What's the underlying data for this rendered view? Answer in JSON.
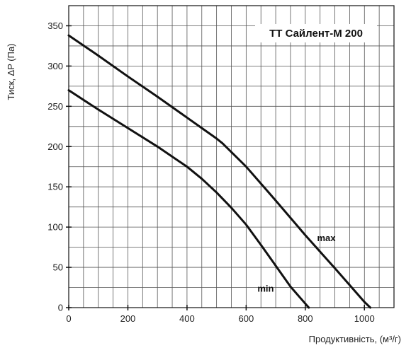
{
  "chart_data": {
    "type": "line",
    "title": "TT Сайлент-М 200",
    "xlabel": "Продуктивність, (м³/г)",
    "ylabel": "Тиск, ΔP (Па)",
    "xlim": [
      0,
      1100
    ],
    "ylim": [
      0,
      375
    ],
    "xticks": [
      0,
      200,
      400,
      600,
      800,
      1000
    ],
    "yticks": [
      0,
      50,
      100,
      150,
      200,
      250,
      300,
      350
    ],
    "grid": true,
    "series": [
      {
        "name": "max",
        "x": [
          0,
          100,
          200,
          300,
          400,
          450,
          500,
          520,
          600,
          700,
          800,
          900,
          1000,
          1020
        ],
        "y": [
          338,
          313,
          287,
          262,
          236,
          223,
          210,
          204,
          175,
          133,
          90,
          49,
          7,
          0
        ]
      },
      {
        "name": "min",
        "x": [
          0,
          100,
          200,
          300,
          400,
          450,
          500,
          550,
          600,
          650,
          700,
          750,
          800,
          812
        ],
        "y": [
          270,
          246,
          223,
          200,
          175,
          160,
          143,
          124,
          103,
          78,
          52,
          26,
          5,
          0
        ]
      }
    ]
  }
}
